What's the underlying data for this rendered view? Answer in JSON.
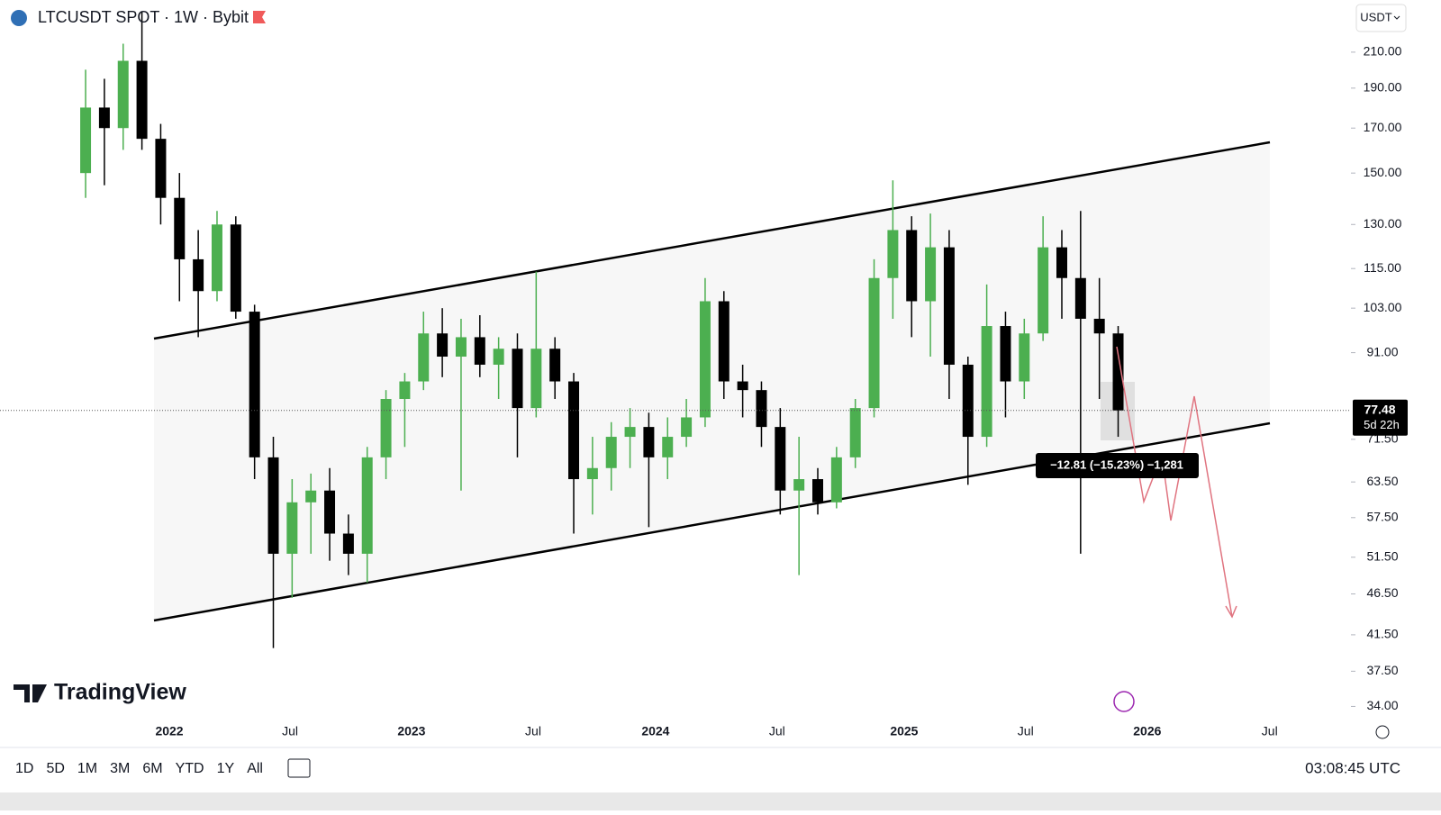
{
  "header": {
    "symbol": "LTCUSDT SPOT · 1W · Bybit",
    "currency": "USDT"
  },
  "chart_data": {
    "type": "candlestick",
    "up_color": "#4caf50",
    "down_color": "#000000",
    "log_scale": true,
    "candles": [
      [
        150,
        200,
        140,
        180
      ],
      [
        180,
        195,
        145,
        170
      ],
      [
        170,
        215,
        160,
        205
      ],
      [
        205,
        235,
        160,
        165
      ],
      [
        165,
        172,
        130,
        140
      ],
      [
        140,
        150,
        105,
        118
      ],
      [
        118,
        128,
        95,
        108
      ],
      [
        108,
        135,
        105,
        130
      ],
      [
        130,
        133,
        100,
        102
      ],
      [
        102,
        104,
        64,
        68
      ],
      [
        68,
        72,
        40,
        52
      ],
      [
        52,
        64,
        46,
        60
      ],
      [
        60,
        65,
        52,
        62
      ],
      [
        62,
        66,
        51,
        55
      ],
      [
        55,
        58,
        49,
        52
      ],
      [
        52,
        70,
        48,
        68
      ],
      [
        68,
        82,
        64,
        80
      ],
      [
        80,
        86,
        70,
        84
      ],
      [
        84,
        102,
        82,
        96
      ],
      [
        96,
        103,
        85,
        90
      ],
      [
        90,
        100,
        62,
        95
      ],
      [
        95,
        101,
        85,
        88
      ],
      [
        88,
        95,
        80,
        92
      ],
      [
        92,
        96,
        68,
        78
      ],
      [
        78,
        114,
        76,
        92
      ],
      [
        92,
        95,
        80,
        84
      ],
      [
        84,
        86,
        55,
        64
      ],
      [
        64,
        72,
        58,
        66
      ],
      [
        66,
        75,
        62,
        72
      ],
      [
        72,
        78,
        66,
        74
      ],
      [
        74,
        77,
        56,
        68
      ],
      [
        68,
        76,
        64,
        72
      ],
      [
        72,
        80,
        70,
        76
      ],
      [
        76,
        112,
        74,
        105
      ],
      [
        105,
        108,
        80,
        84
      ],
      [
        84,
        88,
        76,
        82
      ],
      [
        82,
        84,
        70,
        74
      ],
      [
        74,
        78,
        58,
        62
      ],
      [
        62,
        72,
        49,
        64
      ],
      [
        64,
        66,
        58,
        60
      ],
      [
        60,
        70,
        59,
        68
      ],
      [
        68,
        80,
        66,
        78
      ],
      [
        78,
        118,
        76,
        112
      ],
      [
        112,
        147,
        100,
        128
      ],
      [
        128,
        133,
        95,
        105
      ],
      [
        105,
        134,
        90,
        122
      ],
      [
        122,
        128,
        80,
        88
      ],
      [
        88,
        90,
        63,
        72
      ],
      [
        72,
        110,
        70,
        98
      ],
      [
        98,
        102,
        76,
        84
      ],
      [
        84,
        100,
        80,
        96
      ],
      [
        96,
        133,
        94,
        122
      ],
      [
        122,
        128,
        100,
        112
      ],
      [
        112,
        135,
        52,
        100
      ],
      [
        100,
        112,
        80,
        96
      ],
      [
        96,
        98,
        72,
        77.48
      ]
    ],
    "xlim": [
      -4.56,
      67.4
    ],
    "xticks": [
      {
        "value": 4.46,
        "label": "2022"
      },
      {
        "value": 10.89,
        "label": "Jul"
      },
      {
        "value": 17.36,
        "label": "2023"
      },
      {
        "value": 23.84,
        "label": "Jul"
      },
      {
        "value": 30.36,
        "label": "2024"
      },
      {
        "value": 36.83,
        "label": "Jul"
      },
      {
        "value": 43.6,
        "label": "2025"
      },
      {
        "value": 50.07,
        "label": "Jul"
      },
      {
        "value": 56.55,
        "label": "2026"
      },
      {
        "value": 63.07,
        "label": "Jul"
      }
    ],
    "ylim": [
      32.7,
      242.8
    ],
    "yticks": [
      {
        "value": 210,
        "label": "210.00"
      },
      {
        "value": 190,
        "label": "190.00"
      },
      {
        "value": 170,
        "label": "170.00"
      },
      {
        "value": 150,
        "label": "150.00"
      },
      {
        "value": 130,
        "label": "130.00"
      },
      {
        "value": 115,
        "label": "115.00"
      },
      {
        "value": 103,
        "label": "103.00"
      },
      {
        "value": 91,
        "label": "91.00"
      },
      {
        "value": 71.5,
        "label": "71.50"
      },
      {
        "value": 63.5,
        "label": "63.50"
      },
      {
        "value": 57.5,
        "label": "57.50"
      },
      {
        "value": 51.5,
        "label": "51.50"
      },
      {
        "value": 46.5,
        "label": "46.50"
      },
      {
        "value": 41.5,
        "label": "41.50"
      },
      {
        "value": 37.5,
        "label": "37.50"
      },
      {
        "value": 34,
        "label": "34.00"
      }
    ],
    "last_price": 77.48,
    "countdown": "5d 22h",
    "measure": "−12.81 (−15.23%) −1,281",
    "watermark": "TradingView"
  },
  "toolbar": {
    "ranges": [
      "1D",
      "5D",
      "1M",
      "3M",
      "6M",
      "YTD",
      "1Y",
      "All"
    ],
    "time": "03:08:45 UTC"
  }
}
